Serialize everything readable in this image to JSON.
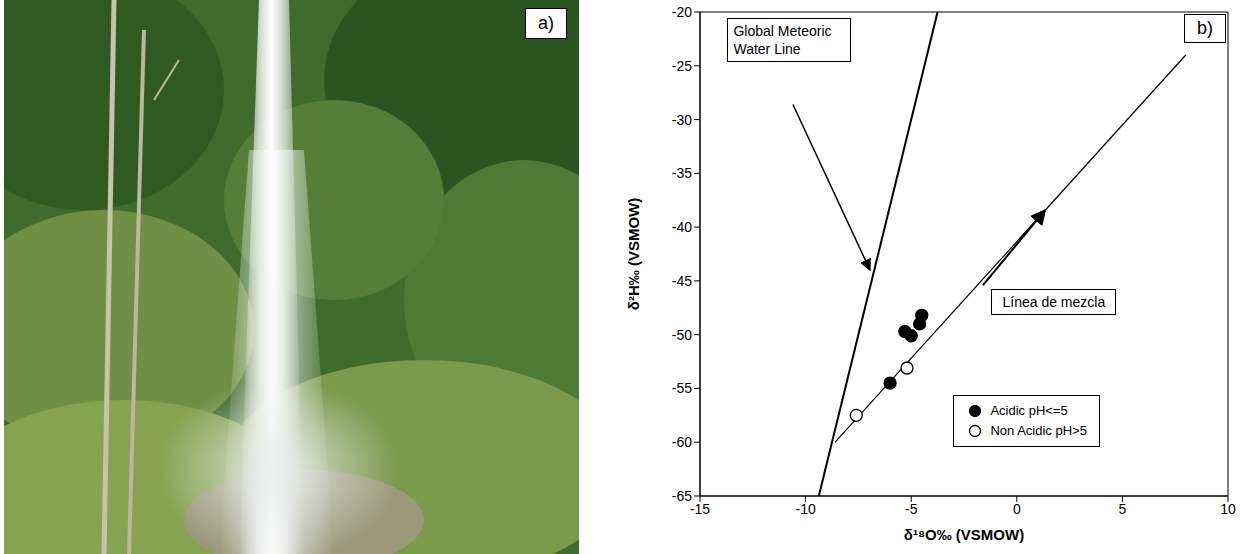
{
  "photo_panel": {
    "label": "a)"
  },
  "chart_data": {
    "type": "scatter",
    "panel_label": "b)",
    "x_label": "δ¹⁸O‰ (VSMOW)",
    "y_label": "δ²H‰ (VSMOW)",
    "xlim": [
      -15,
      10
    ],
    "ylim": [
      -65,
      -20
    ],
    "xticks": [
      -15,
      -10,
      -5,
      0,
      5,
      10
    ],
    "yticks": [
      -65,
      -60,
      -55,
      -50,
      -45,
      -40,
      -35,
      -30,
      -25,
      -20
    ],
    "grid": false,
    "legend": "lower right",
    "series": [
      {
        "name": "Global Meteoric Water Line",
        "type": "line",
        "color": "#000000",
        "x": [
          -9.375,
          -3.75
        ],
        "values": [
          -65,
          -20
        ]
      },
      {
        "name": "Línea de mezcla",
        "type": "line",
        "color": "#000000",
        "x": [
          -8.6,
          8.0
        ],
        "values": [
          -60,
          -24
        ]
      },
      {
        "name": "Acidic pH<=5",
        "type": "scatter",
        "marker": "circle",
        "color": "#000000",
        "x": [
          -6.0,
          -5.3,
          -5.0,
          -4.6,
          -4.5
        ],
        "values": [
          -54.5,
          -49.7,
          -50.1,
          -49.0,
          -48.2
        ]
      },
      {
        "name": "Non Acidic pH>5",
        "type": "scatter",
        "marker": "open_circle",
        "color": "#000000",
        "x": [
          -7.6,
          -5.2
        ],
        "values": [
          -57.5,
          -53.1
        ]
      }
    ]
  }
}
